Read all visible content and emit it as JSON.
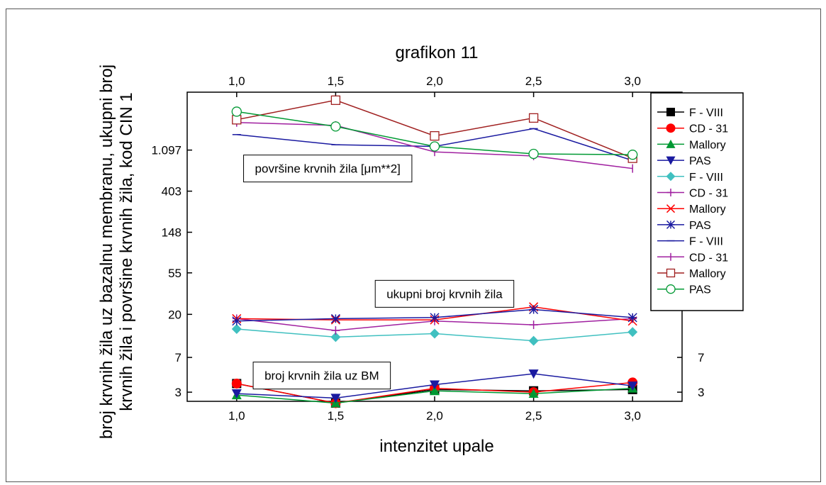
{
  "chart_data": {
    "type": "line",
    "title": "grafikon 11",
    "xlabel": "intenzitet upale",
    "ylabel_lines": [
      "broj krvnih žila uz bazalnu membranu, ukupni broj",
      "krvnih žila i površine krvnih žila, kod CIN 1"
    ],
    "y_scale": "log",
    "x_ticks": [
      "1,0",
      "1,5",
      "2,0",
      "2,5",
      "3,0"
    ],
    "x": [
      1.0,
      1.5,
      2.0,
      2.5,
      3.0
    ],
    "xlim": [
      0.75,
      3.25
    ],
    "y_ticks": [
      "3",
      "7",
      "20",
      "55",
      "148",
      "403",
      "1.097"
    ],
    "y_tick_values": [
      3,
      7,
      20,
      55,
      148,
      403,
      1097
    ],
    "y_right_ticks": [
      "3",
      "7"
    ],
    "y_right_tick_values": [
      3,
      7
    ],
    "ylim": [
      2.4,
      4500
    ],
    "annotations": [
      {
        "id": "area",
        "text": "površine krvnih žila [μm**2]",
        "x": 1.46,
        "y": 700
      },
      {
        "id": "total",
        "text": "ukupni broj krvnih žila",
        "x": 2.05,
        "y": 33
      },
      {
        "id": "bm",
        "text": "broj krvnih žila uz BM",
        "x": 1.43,
        "y": 4.5
      }
    ],
    "legend_position": "right",
    "series": [
      {
        "name": "F - VIII",
        "color": "#000000",
        "marker": "square-filled",
        "values": [
          3.7,
          2.3,
          3.2,
          3.1,
          3.2
        ]
      },
      {
        "name": "CD - 31",
        "color": "#ff0000",
        "marker": "circle-filled",
        "values": [
          3.7,
          2.3,
          3.3,
          3.0,
          3.8
        ]
      },
      {
        "name": "Mallory",
        "color": "#009933",
        "marker": "triangle-up-filled",
        "values": [
          2.8,
          2.3,
          3.1,
          2.9,
          3.3
        ]
      },
      {
        "name": "PAS",
        "color": "#1a1aa0",
        "marker": "triangle-down-filled",
        "values": [
          2.9,
          2.6,
          3.6,
          4.7,
          3.5
        ]
      },
      {
        "name": "F - VIII",
        "color": "#40c0c0",
        "marker": "diamond-filled",
        "values": [
          14,
          11.5,
          12.5,
          10.5,
          13
        ]
      },
      {
        "name": "CD - 31",
        "color": "#a020a0",
        "marker": "plus",
        "values": [
          18,
          13.5,
          17,
          15.5,
          18
        ]
      },
      {
        "name": "Mallory",
        "color": "#ff0000",
        "marker": "x",
        "values": [
          18,
          17.5,
          17.5,
          24,
          17
        ]
      },
      {
        "name": "PAS",
        "color": "#1a1aa0",
        "marker": "asterisk",
        "values": [
          17,
          18,
          18.5,
          22.5,
          18.5
        ]
      },
      {
        "name": "F - VIII",
        "color": "#1a1aa0",
        "marker": "dash",
        "values": [
          1600,
          1250,
          1200,
          1850,
          850
        ]
      },
      {
        "name": "CD - 31",
        "color": "#a020a0",
        "marker": "vline",
        "values": [
          2150,
          2000,
          1050,
          950,
          700
        ]
      },
      {
        "name": "Mallory",
        "color": "#a02020",
        "marker": "square-open",
        "values": [
          2300,
          3700,
          1550,
          2400,
          900
        ]
      },
      {
        "name": "PAS",
        "color": "#009933",
        "marker": "circle-open",
        "values": [
          2800,
          1950,
          1200,
          1000,
          980
        ]
      }
    ]
  }
}
